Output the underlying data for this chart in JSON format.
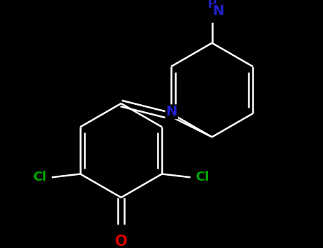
{
  "background_color": "#000000",
  "bond_color": "#ffffff",
  "N_color": "#2020cc",
  "Cl_color": "#00aa00",
  "O_color": "#dd0000",
  "bond_width": 1.8,
  "dbo": 0.07,
  "figsize": [
    4.55,
    3.5
  ],
  "dpi": 100,
  "xlim": [
    -3.5,
    3.5
  ],
  "ylim": [
    -3.2,
    2.8
  ]
}
